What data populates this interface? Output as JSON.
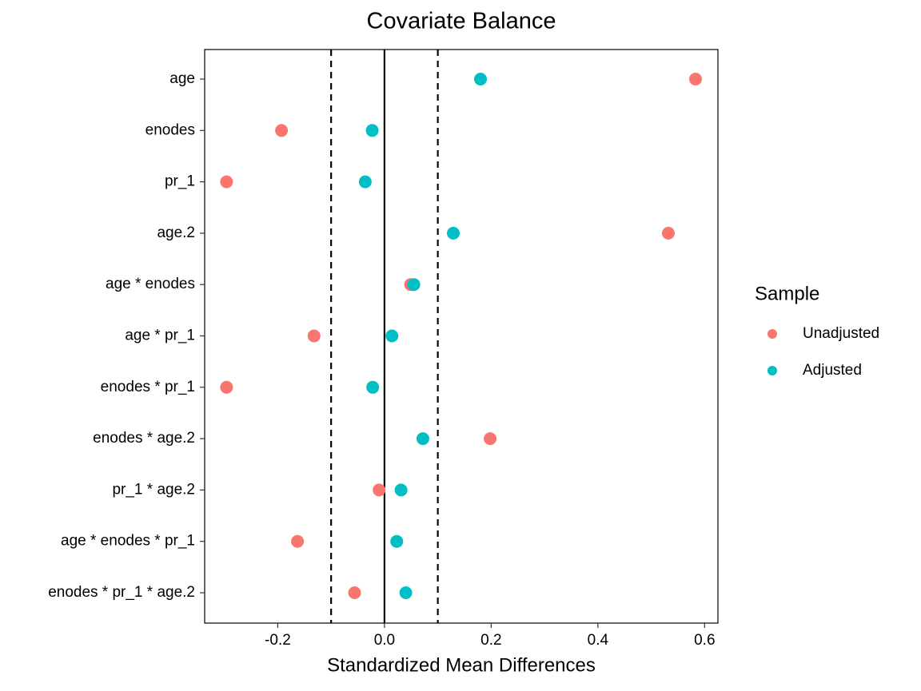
{
  "chart_data": {
    "type": "dot",
    "title": "Covariate Balance",
    "x_label": "Standardized Mean Differences",
    "categories": [
      "age",
      "enodes",
      "pr_1",
      "age.2",
      "age * enodes",
      "age * pr_1",
      "enodes * pr_1",
      "enodes * age.2",
      "pr_1 * age.2",
      "age * enodes * pr_1",
      "enodes * pr_1 * age.2"
    ],
    "series": [
      {
        "name": "Unadjusted",
        "color": "#F8766D",
        "values": [
          0.583,
          -0.193,
          -0.296,
          0.532,
          0.049,
          -0.132,
          -0.296,
          0.198,
          -0.01,
          -0.163,
          -0.056
        ]
      },
      {
        "name": "Adjusted",
        "color": "#00BFC4",
        "values": [
          0.18,
          -0.023,
          -0.036,
          0.129,
          0.055,
          0.014,
          -0.022,
          0.072,
          0.031,
          0.023,
          0.04
        ]
      }
    ],
    "xlim": [
      -0.337,
      0.625
    ],
    "xticks": [
      -0.2,
      {
        "value": 0,
        "label": "0.0"
      },
      0.2,
      0.4,
      0.6
    ],
    "reference_line": 0,
    "thresholds": [
      -0.1,
      0.1
    ],
    "legend_title": "Sample",
    "legend_position": "right"
  }
}
